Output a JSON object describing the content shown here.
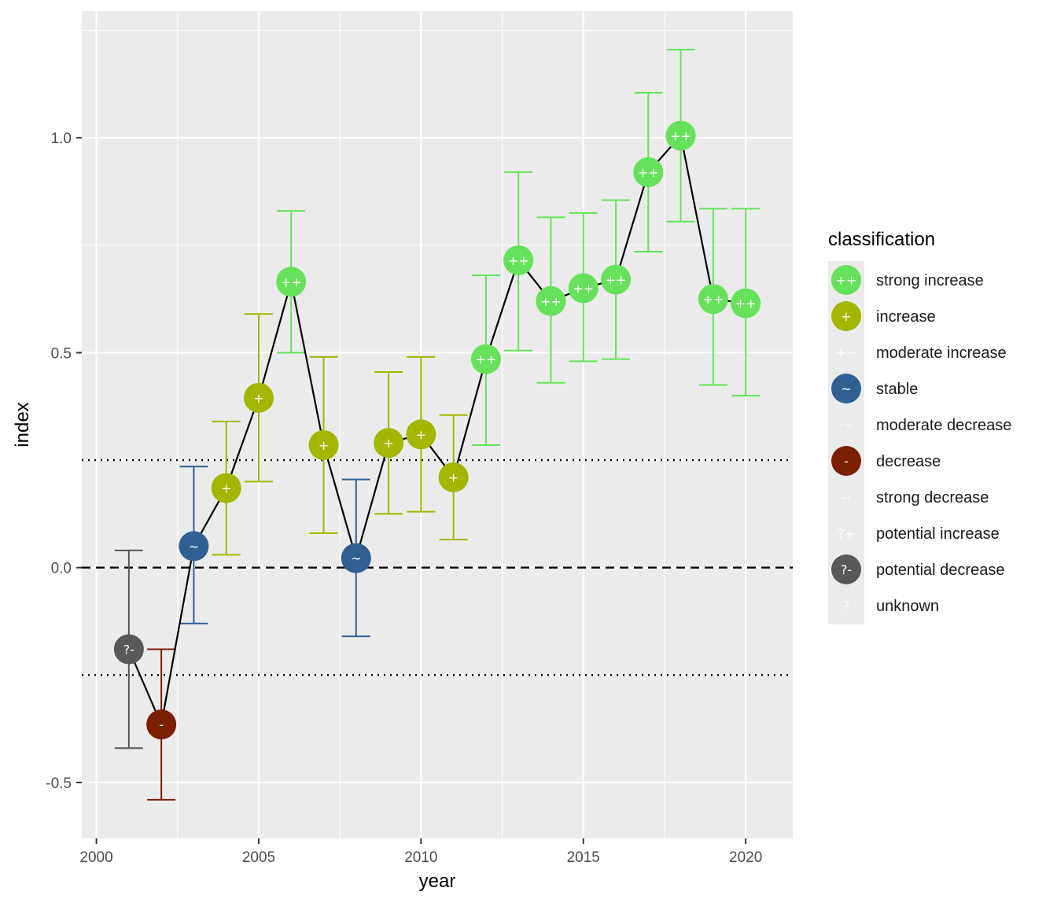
{
  "chart_data": {
    "type": "scatter",
    "xlabel": "year",
    "ylabel": "index",
    "xlim": [
      1999.55,
      2021.45
    ],
    "ylim": [
      -0.63,
      1.295
    ],
    "x_ticks": [
      2000,
      2005,
      2010,
      2015,
      2020
    ],
    "x_tick_labels": [
      "2000",
      "2005",
      "2010",
      "2015",
      "2020"
    ],
    "y_ticks": [
      -0.5,
      0.0,
      0.5,
      1.0
    ],
    "y_tick_labels": [
      "-0.5",
      "0.0",
      "0.5",
      "1.0"
    ],
    "reference_lines": [
      {
        "y": 0.0,
        "style": "dashed"
      },
      {
        "y": 0.25,
        "style": "dotted"
      },
      {
        "y": -0.25,
        "style": "dotted"
      }
    ],
    "series": [
      {
        "name": "index",
        "points": [
          {
            "x": 2001,
            "y": -0.19,
            "lcl": -0.42,
            "ucl": 0.04,
            "class": "?-"
          },
          {
            "x": 2002,
            "y": -0.365,
            "lcl": -0.54,
            "ucl": -0.19,
            "class": "-"
          },
          {
            "x": 2003,
            "y": 0.05,
            "lcl": -0.13,
            "ucl": 0.235,
            "class": "~"
          },
          {
            "x": 2004,
            "y": 0.185,
            "lcl": 0.03,
            "ucl": 0.34,
            "class": "+"
          },
          {
            "x": 2005,
            "y": 0.395,
            "lcl": 0.2,
            "ucl": 0.59,
            "class": "+"
          },
          {
            "x": 2006,
            "y": 0.665,
            "lcl": 0.5,
            "ucl": 0.83,
            "class": "++"
          },
          {
            "x": 2007,
            "y": 0.285,
            "lcl": 0.08,
            "ucl": 0.49,
            "class": "+"
          },
          {
            "x": 2008,
            "y": 0.022,
            "lcl": -0.16,
            "ucl": 0.205,
            "class": "~"
          },
          {
            "x": 2009,
            "y": 0.29,
            "lcl": 0.125,
            "ucl": 0.455,
            "class": "+"
          },
          {
            "x": 2010,
            "y": 0.31,
            "lcl": 0.13,
            "ucl": 0.49,
            "class": "+"
          },
          {
            "x": 2011,
            "y": 0.21,
            "lcl": 0.065,
            "ucl": 0.355,
            "class": "+"
          },
          {
            "x": 2012,
            "y": 0.485,
            "lcl": 0.285,
            "ucl": 0.68,
            "class": "++"
          },
          {
            "x": 2013,
            "y": 0.715,
            "lcl": 0.505,
            "ucl": 0.92,
            "class": "++"
          },
          {
            "x": 2014,
            "y": 0.62,
            "lcl": 0.43,
            "ucl": 0.815,
            "class": "++"
          },
          {
            "x": 2015,
            "y": 0.65,
            "lcl": 0.48,
            "ucl": 0.825,
            "class": "++"
          },
          {
            "x": 2016,
            "y": 0.67,
            "lcl": 0.485,
            "ucl": 0.855,
            "class": "++"
          },
          {
            "x": 2017,
            "y": 0.92,
            "lcl": 0.735,
            "ucl": 1.105,
            "class": "++"
          },
          {
            "x": 2018,
            "y": 1.005,
            "lcl": 0.805,
            "ucl": 1.205,
            "class": "++"
          },
          {
            "x": 2019,
            "y": 0.625,
            "lcl": 0.425,
            "ucl": 0.835,
            "class": "++"
          },
          {
            "x": 2020,
            "y": 0.615,
            "lcl": 0.4,
            "ucl": 0.835,
            "class": "++"
          }
        ]
      }
    ],
    "legend": {
      "title": "classification",
      "position": "right",
      "entries": [
        {
          "symbol": "++",
          "label": "strong increase",
          "color": "#67e15c",
          "filled": true
        },
        {
          "symbol": "+",
          "label": "increase",
          "color": "#a3b600",
          "filled": true
        },
        {
          "symbol": "+~",
          "label": "moderate increase",
          "color": null,
          "filled": false
        },
        {
          "symbol": "~",
          "label": "stable",
          "color": "#2f5f93",
          "filled": true
        },
        {
          "symbol": "-~",
          "label": "moderate decrease",
          "color": null,
          "filled": false
        },
        {
          "symbol": "-",
          "label": "decrease",
          "color": "#7a1f00",
          "filled": true
        },
        {
          "symbol": "--",
          "label": "strong decrease",
          "color": null,
          "filled": false
        },
        {
          "symbol": "?+",
          "label": "potential increase",
          "color": null,
          "filled": false
        },
        {
          "symbol": "?-",
          "label": "potential decrease",
          "color": "#585858",
          "filled": true
        },
        {
          "symbol": "?",
          "label": "unknown",
          "color": null,
          "filled": false
        }
      ]
    }
  },
  "colors": {
    "panel_background": "#ebebeb",
    "grid": "#ffffff",
    "line": "#000000"
  }
}
